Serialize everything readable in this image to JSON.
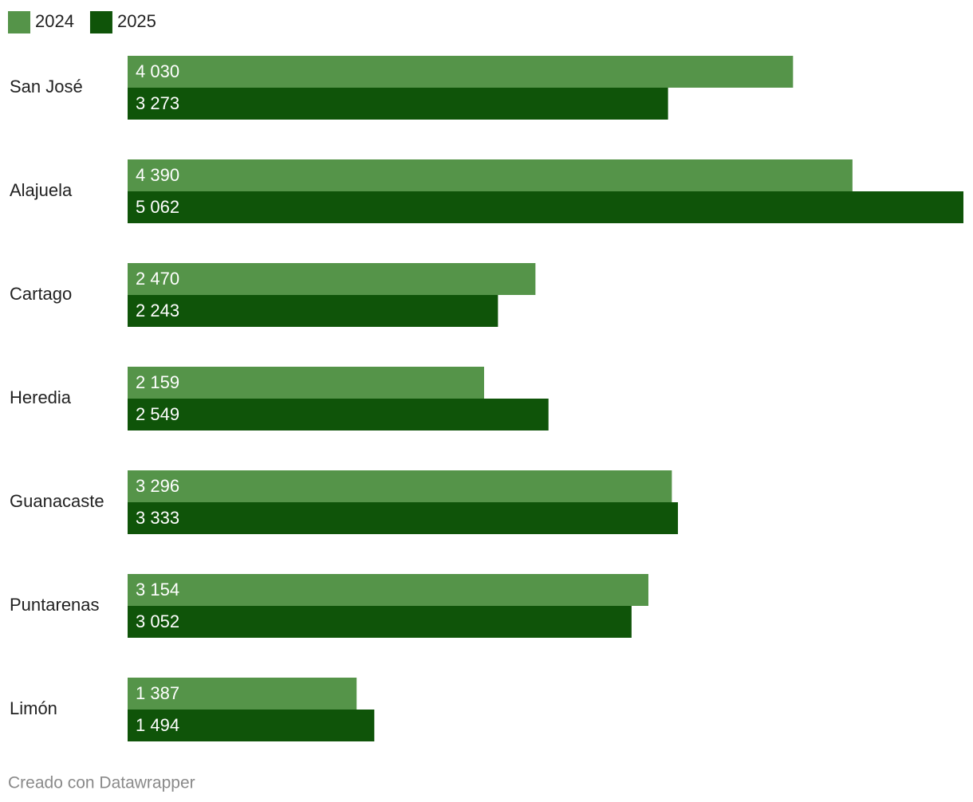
{
  "chart_data": {
    "type": "bar",
    "categories": [
      "San José",
      "Alajuela",
      "Cartago",
      "Heredia",
      "Guanacaste",
      "Puntarenas",
      "Limón"
    ],
    "series": [
      {
        "name": "2024",
        "color": "#559449",
        "values": [
          4030,
          4390,
          2470,
          2159,
          3296,
          3154,
          1387
        ],
        "value_labels": [
          "4 030",
          "4 390",
          "2 470",
          "2 159",
          "3 296",
          "3 154",
          "1 387"
        ]
      },
      {
        "name": "2025",
        "color": "#0f5409",
        "values": [
          3273,
          5062,
          2243,
          2549,
          3333,
          3052,
          1494
        ],
        "value_labels": [
          "3 273",
          "5 062",
          "2 243",
          "2 549",
          "3 333",
          "3 052",
          "1 494"
        ]
      }
    ],
    "xlim": [
      0,
      5062
    ],
    "footer": "Creado con Datawrapper"
  }
}
